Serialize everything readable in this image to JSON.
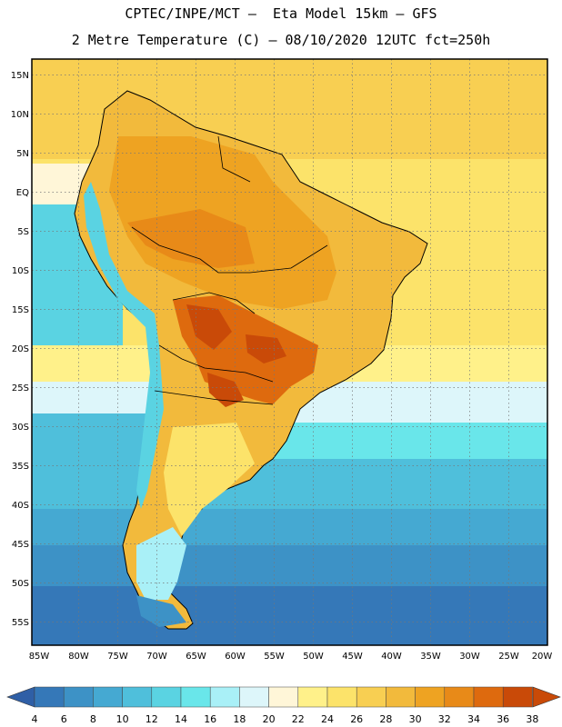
{
  "header": {
    "line1": "CPTEC/INPE/MCT –  Eta Model 15km – GFS",
    "line2": "2 Metre Temperature (C) – 08/10/2020 12UTC fct=250h"
  },
  "axes": {
    "lat_labels": [
      "15N",
      "10N",
      "5N",
      "EQ",
      "5S",
      "10S",
      "15S",
      "20S",
      "25S",
      "30S",
      "35S",
      "40S",
      "45S",
      "50S",
      "55S"
    ],
    "lon_labels": [
      "85W",
      "80W",
      "75W",
      "70W",
      "65W",
      "60W",
      "55W",
      "50W",
      "45W",
      "40W",
      "35W",
      "30W",
      "25W",
      "20W"
    ]
  },
  "colorbar": {
    "labels": [
      "4",
      "6",
      "8",
      "10",
      "12",
      "14",
      "16",
      "18",
      "20",
      "22",
      "24",
      "26",
      "28",
      "30",
      "32",
      "34",
      "36",
      "38"
    ],
    "colors": [
      "#2f5fa6",
      "#3578b8",
      "#3d92c6",
      "#45a9d2",
      "#4fbfdb",
      "#5ad3e2",
      "#69e6ea",
      "#a9f0f7",
      "#ddf6fa",
      "#fff6d8",
      "#fff18a",
      "#fce36a",
      "#f8cf52",
      "#f2ba3c",
      "#eea322",
      "#e88a18",
      "#de6a0e",
      "#c94a08"
    ]
  },
  "chart_data": {
    "type": "heatmap",
    "title": "2 Metre Temperature (C) – 08/10/2020 12UTC fct=250h",
    "xlim": [
      -85,
      -20
    ],
    "ylim": [
      -57,
      16
    ],
    "x_ticks": [
      -85,
      -80,
      -75,
      -70,
      -65,
      -60,
      -55,
      -50,
      -45,
      -40,
      -35,
      -30,
      -25,
      -20
    ],
    "y_ticks": [
      15,
      10,
      5,
      0,
      -5,
      -10,
      -15,
      -20,
      -25,
      -30,
      -35,
      -40,
      -45,
      -50,
      -55
    ],
    "grid": true,
    "color_scale": [
      4,
      6,
      8,
      10,
      12,
      14,
      16,
      18,
      20,
      22,
      24,
      26,
      28,
      30,
      32,
      34,
      36,
      38
    ]
  }
}
